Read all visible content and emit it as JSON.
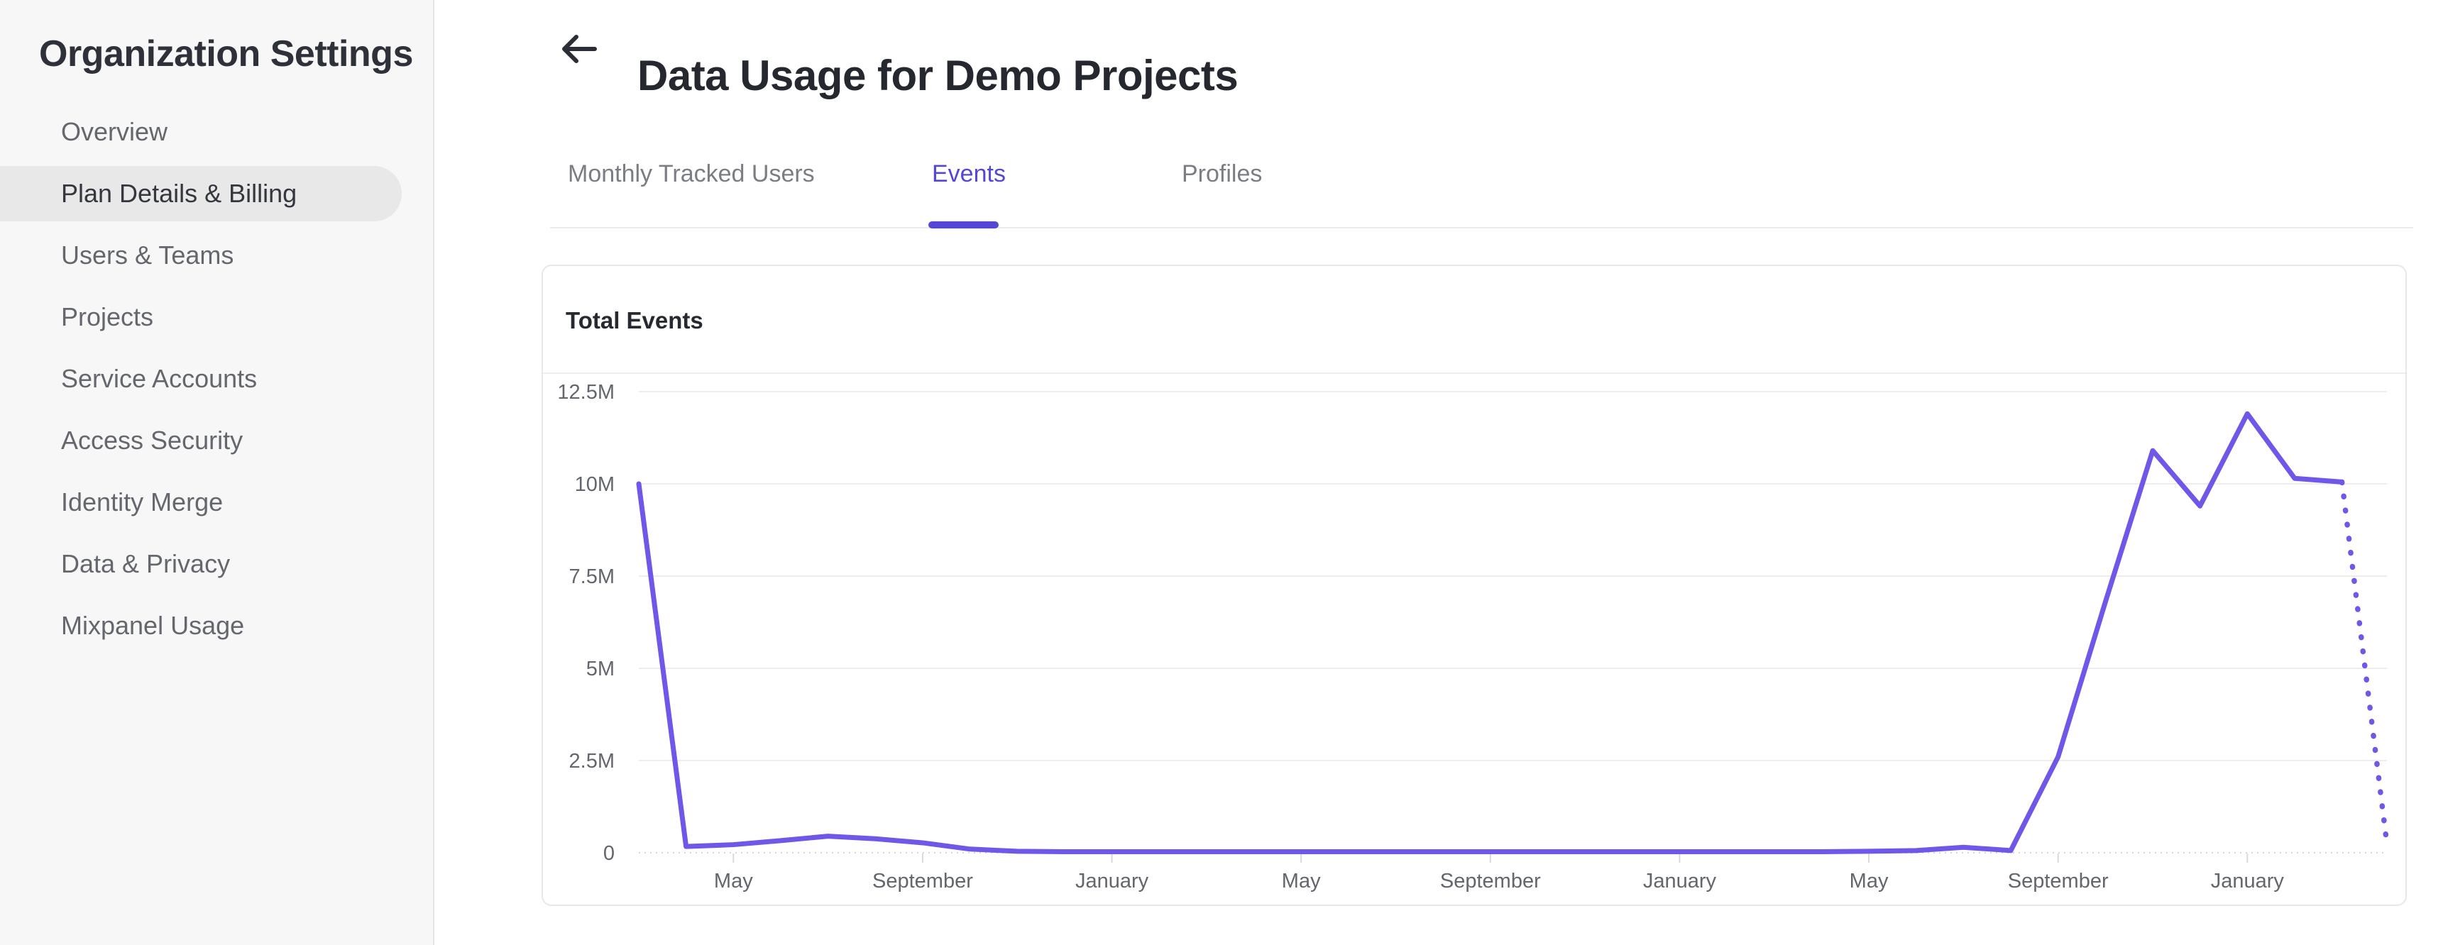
{
  "sidebar": {
    "title": "Organization Settings",
    "items": [
      {
        "label": "Overview",
        "selected": false
      },
      {
        "label": "Plan Details & Billing",
        "selected": true
      },
      {
        "label": "Users & Teams",
        "selected": false
      },
      {
        "label": "Projects",
        "selected": false
      },
      {
        "label": "Service Accounts",
        "selected": false
      },
      {
        "label": "Access Security",
        "selected": false
      },
      {
        "label": "Identity Merge",
        "selected": false
      },
      {
        "label": "Data & Privacy",
        "selected": false
      },
      {
        "label": "Mixpanel Usage",
        "selected": false
      }
    ]
  },
  "header": {
    "title": "Data Usage for Demo Projects",
    "back_icon": "arrow-left"
  },
  "tabs": [
    {
      "label": "Monthly Tracked Users",
      "active": false
    },
    {
      "label": "Events",
      "active": true
    },
    {
      "label": "Profiles",
      "active": false
    }
  ],
  "card": {
    "title": "Total Events"
  },
  "colors": {
    "accent_purple": "#5547d6",
    "chart_line_purple": "#6e58e8",
    "sidebar_bg": "#f7f7f7",
    "selected_item_bg": "#e8e8e9",
    "grid_gray": "#ededed",
    "axis_text_gray": "#63666c"
  },
  "chart_data": {
    "type": "line",
    "title": "Total Events",
    "legend": "none",
    "grid": "horizontal",
    "ylim_millions": [
      0,
      12.5
    ],
    "y_tick_labels": [
      "12.5M",
      "10M",
      "7.5M",
      "5M",
      "2.5M",
      "0"
    ],
    "y_tick_values_millions": [
      12.5,
      10,
      7.5,
      5,
      2.5,
      0
    ],
    "x_tick_labels": [
      "May",
      "September",
      "January",
      "May",
      "September",
      "January",
      "May",
      "September",
      "January"
    ],
    "x_tick_month_indices": [
      2,
      6,
      10,
      14,
      18,
      22,
      26,
      30,
      34
    ],
    "series": [
      {
        "name": "Total Events",
        "unit": "million events per month",
        "values_millions": [
          10.0,
          0.17,
          0.22,
          0.33,
          0.45,
          0.38,
          0.27,
          0.1,
          0.04,
          0.03,
          0.03,
          0.03,
          0.03,
          0.03,
          0.03,
          0.03,
          0.03,
          0.03,
          0.03,
          0.03,
          0.03,
          0.03,
          0.03,
          0.03,
          0.03,
          0.03,
          0.04,
          0.06,
          0.15,
          0.06,
          2.6,
          6.8,
          10.9,
          9.4,
          11.9,
          10.15,
          10.05
        ]
      }
    ],
    "projection_dotted_month_value": [
      [
        36,
        10.05
      ],
      [
        36.93,
        0.45
      ]
    ],
    "line_color": "#6e58e8"
  }
}
